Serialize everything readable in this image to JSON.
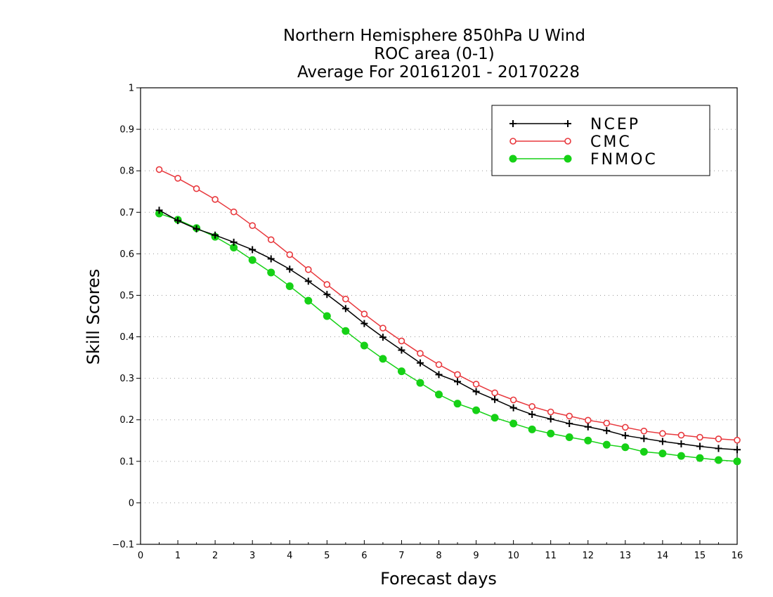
{
  "chart_data": {
    "type": "line",
    "title_lines": [
      "Northern Hemisphere 850hPa U Wind",
      "ROC area (0-1)",
      "Average For 20161201 - 20170228"
    ],
    "xlabel": "Forecast days",
    "ylabel": "Skill Scores",
    "xlim": [
      0,
      16
    ],
    "ylim": [
      -0.1,
      1
    ],
    "x_ticks": [
      0,
      1,
      2,
      3,
      4,
      5,
      6,
      7,
      8,
      9,
      10,
      11,
      12,
      13,
      14,
      15,
      16
    ],
    "y_ticks": [
      -0.1,
      0,
      0.1,
      0.2,
      0.3,
      0.4,
      0.5,
      0.6,
      0.7,
      0.8,
      0.9,
      1
    ],
    "x_tick_labels": [
      "0",
      "1",
      "2",
      "3",
      "4",
      "5",
      "6",
      "7",
      "8",
      "9",
      "10",
      "11",
      "12",
      "13",
      "14",
      "15",
      "16"
    ],
    "y_tick_labels": [
      "−0.1",
      "0",
      "0.1",
      "0.2",
      "0.3",
      "0.4",
      "0.5",
      "0.6",
      "0.7",
      "0.8",
      "0.9",
      "1"
    ],
    "grid": "horizontal dotted",
    "legend_position": "top-right",
    "x": [
      0.5,
      1,
      1.5,
      2,
      2.5,
      3,
      3.5,
      4,
      4.5,
      5,
      5.5,
      6,
      6.5,
      7,
      7.5,
      8,
      8.5,
      9,
      9.5,
      10,
      10.5,
      11,
      11.5,
      12,
      12.5,
      13,
      13.5,
      14,
      14.5,
      15,
      15.5,
      16
    ],
    "series": [
      {
        "name": "NCEP",
        "color": "#000000",
        "marker": "plus",
        "values": [
          0.705,
          0.68,
          0.66,
          0.645,
          0.628,
          0.61,
          0.588,
          0.563,
          0.534,
          0.502,
          0.468,
          0.432,
          0.399,
          0.368,
          0.337,
          0.309,
          0.292,
          0.268,
          0.249,
          0.229,
          0.213,
          0.202,
          0.191,
          0.183,
          0.174,
          0.162,
          0.155,
          0.148,
          0.142,
          0.136,
          0.131,
          0.128
        ]
      },
      {
        "name": "CMC",
        "color": "#e8383d",
        "marker": "open-circle",
        "values": [
          0.803,
          0.782,
          0.757,
          0.731,
          0.701,
          0.668,
          0.634,
          0.598,
          0.562,
          0.526,
          0.491,
          0.455,
          0.421,
          0.39,
          0.36,
          0.333,
          0.309,
          0.286,
          0.265,
          0.248,
          0.232,
          0.219,
          0.209,
          0.199,
          0.192,
          0.182,
          0.173,
          0.167,
          0.163,
          0.158,
          0.154,
          0.151
        ]
      },
      {
        "name": "FNMOC",
        "color": "#16d116",
        "marker": "filled-circle",
        "values": [
          0.697,
          0.682,
          0.662,
          0.641,
          0.615,
          0.585,
          0.555,
          0.522,
          0.487,
          0.45,
          0.414,
          0.379,
          0.347,
          0.317,
          0.289,
          0.261,
          0.239,
          0.223,
          0.205,
          0.191,
          0.177,
          0.167,
          0.158,
          0.15,
          0.14,
          0.134,
          0.123,
          0.119,
          0.113,
          0.108,
          0.103,
          0.1
        ]
      }
    ]
  }
}
